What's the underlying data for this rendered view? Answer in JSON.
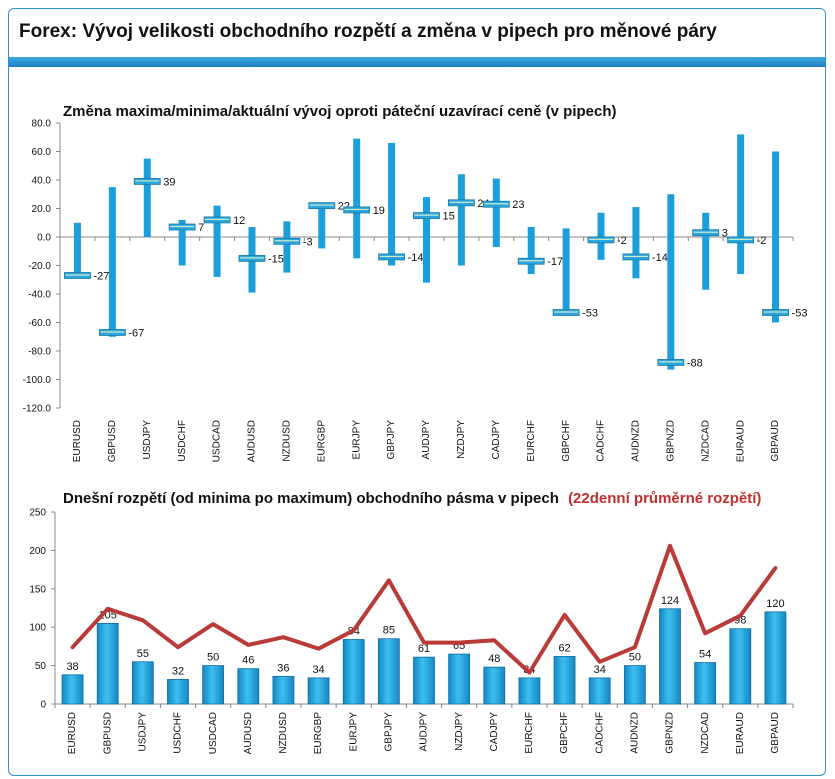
{
  "header": {
    "title": "Forex: Vývoj velikosti obchodního rozpětí a změna v pipech pro měnové páry"
  },
  "colors": {
    "accent": "#1e88c8",
    "bar": "#1a9fdc",
    "line": "#b93a36",
    "title_red": "#c0302e"
  },
  "chart_data": [
    {
      "type": "bar",
      "title": "Změna maxima/minima/aktuální vývoj oproti páteční uzavírací ceně (v pipech)",
      "categories": [
        "EURUSD",
        "GBPUSD",
        "USDJPY",
        "USDCHF",
        "USDCAD",
        "AUDUSD",
        "NZDUSD",
        "EURGBP",
        "EURJPY",
        "GBPJPY",
        "AUDJPY",
        "NZDJPY",
        "CADJPY",
        "EURCHF",
        "GBPCHF",
        "CADCHF",
        "AUDNZD",
        "GBPNZD",
        "NZDCAD",
        "EURAUD",
        "GBPAUD"
      ],
      "high": [
        10,
        35,
        55,
        12,
        22,
        7,
        11,
        24,
        69,
        66,
        28,
        44,
        41,
        7,
        6,
        17,
        21,
        30,
        17,
        72,
        60
      ],
      "low": [
        -28,
        -70,
        0,
        -20,
        -28,
        -39,
        -25,
        -8,
        -15,
        -20,
        -32,
        -20,
        -7,
        -26,
        -53,
        -16,
        -29,
        -93,
        -37,
        -26,
        -60
      ],
      "current": [
        -27,
        -67,
        39,
        7,
        12,
        -15,
        -3,
        22,
        19,
        -14,
        15,
        24,
        23,
        -17,
        -53,
        -2,
        -14,
        -88,
        3,
        -2,
        -53
      ],
      "current_labels": [
        "-27",
        "-67",
        "39",
        "7",
        "12",
        "-15",
        "-3",
        "22",
        "19",
        "-14",
        "15",
        "24",
        "23",
        "-17",
        "-53",
        "-2",
        "-14",
        "-88",
        "3",
        "-2",
        "-53"
      ],
      "ylim": [
        -120,
        80
      ],
      "yticks": [
        "80.0",
        "60.0",
        "40.0",
        "20.0",
        "0.0",
        "-20.0",
        "-40.0",
        "-60.0",
        "-80.0",
        "-100.0",
        "-120.0"
      ],
      "ytick_values": [
        80,
        60,
        40,
        20,
        0,
        -20,
        -40,
        -60,
        -80,
        -100,
        -120
      ]
    },
    {
      "type": "bar",
      "title": "Dnešní rozpětí (od minima po maximum) obchodního pásma v pipech",
      "title_suffix": "(22denní průměrné rozpětí)",
      "categories": [
        "EURUSD",
        "GBPUSD",
        "USDJPY",
        "USDCHF",
        "USDCAD",
        "AUDUSD",
        "NZDUSD",
        "EURGBP",
        "EURJPY",
        "GBPJPY",
        "AUDJPY",
        "NZDJPY",
        "CADJPY",
        "EURCHF",
        "GBPCHF",
        "CADCHF",
        "AUDNZD",
        "GBPNZD",
        "NZDCAD",
        "EURAUD",
        "GBPAUD"
      ],
      "values": [
        38,
        105,
        55,
        32,
        50,
        46,
        36,
        34,
        84,
        85,
        61,
        65,
        48,
        34,
        62,
        34,
        50,
        124,
        54,
        98,
        120
      ],
      "value_labels": [
        "38",
        "105",
        "55",
        "32",
        "50",
        "46",
        "36",
        "34",
        "84",
        "85",
        "61",
        "65",
        "48",
        "34",
        "62",
        "34",
        "50",
        "124",
        "54",
        "98",
        "120"
      ],
      "line_values": [
        74,
        124,
        109,
        74,
        104,
        77,
        87,
        72,
        96,
        161,
        80,
        80,
        83,
        41,
        116,
        55,
        74,
        206,
        92,
        115,
        177
      ],
      "ylim": [
        0,
        250
      ],
      "yticks": [
        "250",
        "200",
        "150",
        "100",
        "50",
        "0"
      ],
      "ytick_values": [
        250,
        200,
        150,
        100,
        50,
        0
      ]
    }
  ]
}
